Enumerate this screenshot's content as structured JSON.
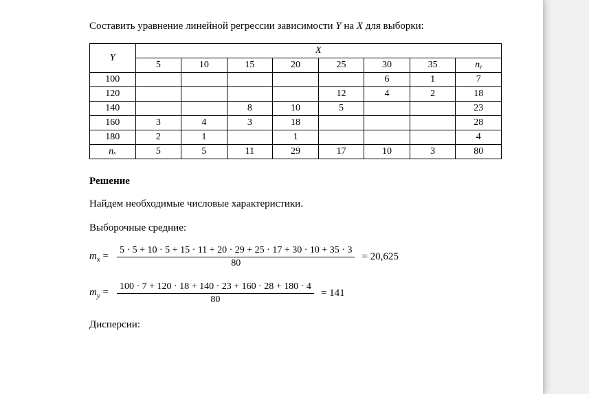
{
  "intro": {
    "prefix": "Составить уравнение линейной регрессии зависимости ",
    "var_y": "Y",
    "mid1": " на ",
    "var_x": "X",
    "mid2": " для выборки:"
  },
  "table": {
    "y_label": "Y",
    "x_label": "X",
    "x_headers": [
      "5",
      "10",
      "15",
      "20",
      "25",
      "30",
      "35"
    ],
    "ny_label": "nᵧ",
    "nx_label": "nₓ",
    "rows": [
      {
        "y": "100",
        "cells": [
          "",
          "",
          "",
          "",
          "",
          "6",
          "1"
        ],
        "ny": "7"
      },
      {
        "y": "120",
        "cells": [
          "",
          "",
          "",
          "",
          "12",
          "4",
          "2"
        ],
        "ny": "18"
      },
      {
        "y": "140",
        "cells": [
          "",
          "",
          "8",
          "10",
          "5",
          "",
          ""
        ],
        "ny": "23"
      },
      {
        "y": "160",
        "cells": [
          "3",
          "4",
          "3",
          "18",
          "",
          "",
          ""
        ],
        "ny": "28"
      },
      {
        "y": "180",
        "cells": [
          "2",
          "1",
          "",
          "1",
          "",
          "",
          ""
        ],
        "ny": "4"
      }
    ],
    "nx_row": [
      "5",
      "5",
      "11",
      "29",
      "17",
      "10",
      "3"
    ],
    "total": "80"
  },
  "solution": {
    "heading": "Решение",
    "line1": "Найдем необходимые числовые характеристики.",
    "line2": "Выборочные средние:",
    "mx": {
      "label": "m",
      "sub": "x",
      "numerator": "5 · 5 + 10 · 5 + 15 · 11 + 20 · 29 + 25 · 17 + 30 · 10 + 35 · 3",
      "denominator": "80",
      "result": "= 20,625"
    },
    "my": {
      "label": "m",
      "sub": "y",
      "numerator": "100 · 7 + 120 · 18 + 140 · 23 + 160 · 28 + 180 · 4",
      "denominator": "80",
      "result": "= 141"
    },
    "line3": "Дисперсии:"
  }
}
